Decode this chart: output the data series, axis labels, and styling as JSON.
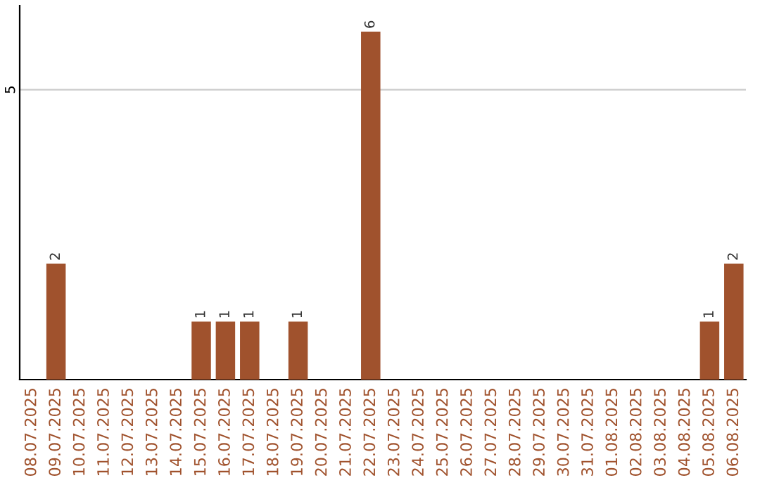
{
  "chart_data": {
    "type": "bar",
    "categories": [
      "08.07.2025",
      "09.07.2025",
      "10.07.2025",
      "11.07.2025",
      "12.07.2025",
      "13.07.2025",
      "14.07.2025",
      "15.07.2025",
      "16.07.2025",
      "17.07.2025",
      "18.07.2025",
      "19.07.2025",
      "20.07.2025",
      "21.07.2025",
      "22.07.2025",
      "23.07.2025",
      "24.07.2025",
      "25.07.2025",
      "26.07.2025",
      "27.07.2025",
      "28.07.2025",
      "29.07.2025",
      "30.07.2025",
      "31.07.2025",
      "01.08.2025",
      "02.08.2025",
      "03.08.2025",
      "04.08.2025",
      "05.08.2025",
      "06.08.2025"
    ],
    "values": [
      0,
      2,
      0,
      0,
      0,
      0,
      0,
      1,
      1,
      1,
      0,
      1,
      0,
      0,
      6,
      0,
      0,
      0,
      0,
      0,
      0,
      0,
      0,
      0,
      0,
      0,
      0,
      0,
      1,
      2
    ],
    "value_labels": [
      null,
      "2",
      null,
      null,
      null,
      null,
      null,
      "1",
      "1",
      "1",
      null,
      "1",
      null,
      null,
      "6",
      null,
      null,
      null,
      null,
      null,
      null,
      null,
      null,
      null,
      null,
      null,
      null,
      null,
      "1",
      "2"
    ],
    "color": "#a0522d",
    "ylim": [
      0,
      6.45
    ],
    "yticks": [
      5
    ],
    "grid": "y",
    "legend": false
  }
}
